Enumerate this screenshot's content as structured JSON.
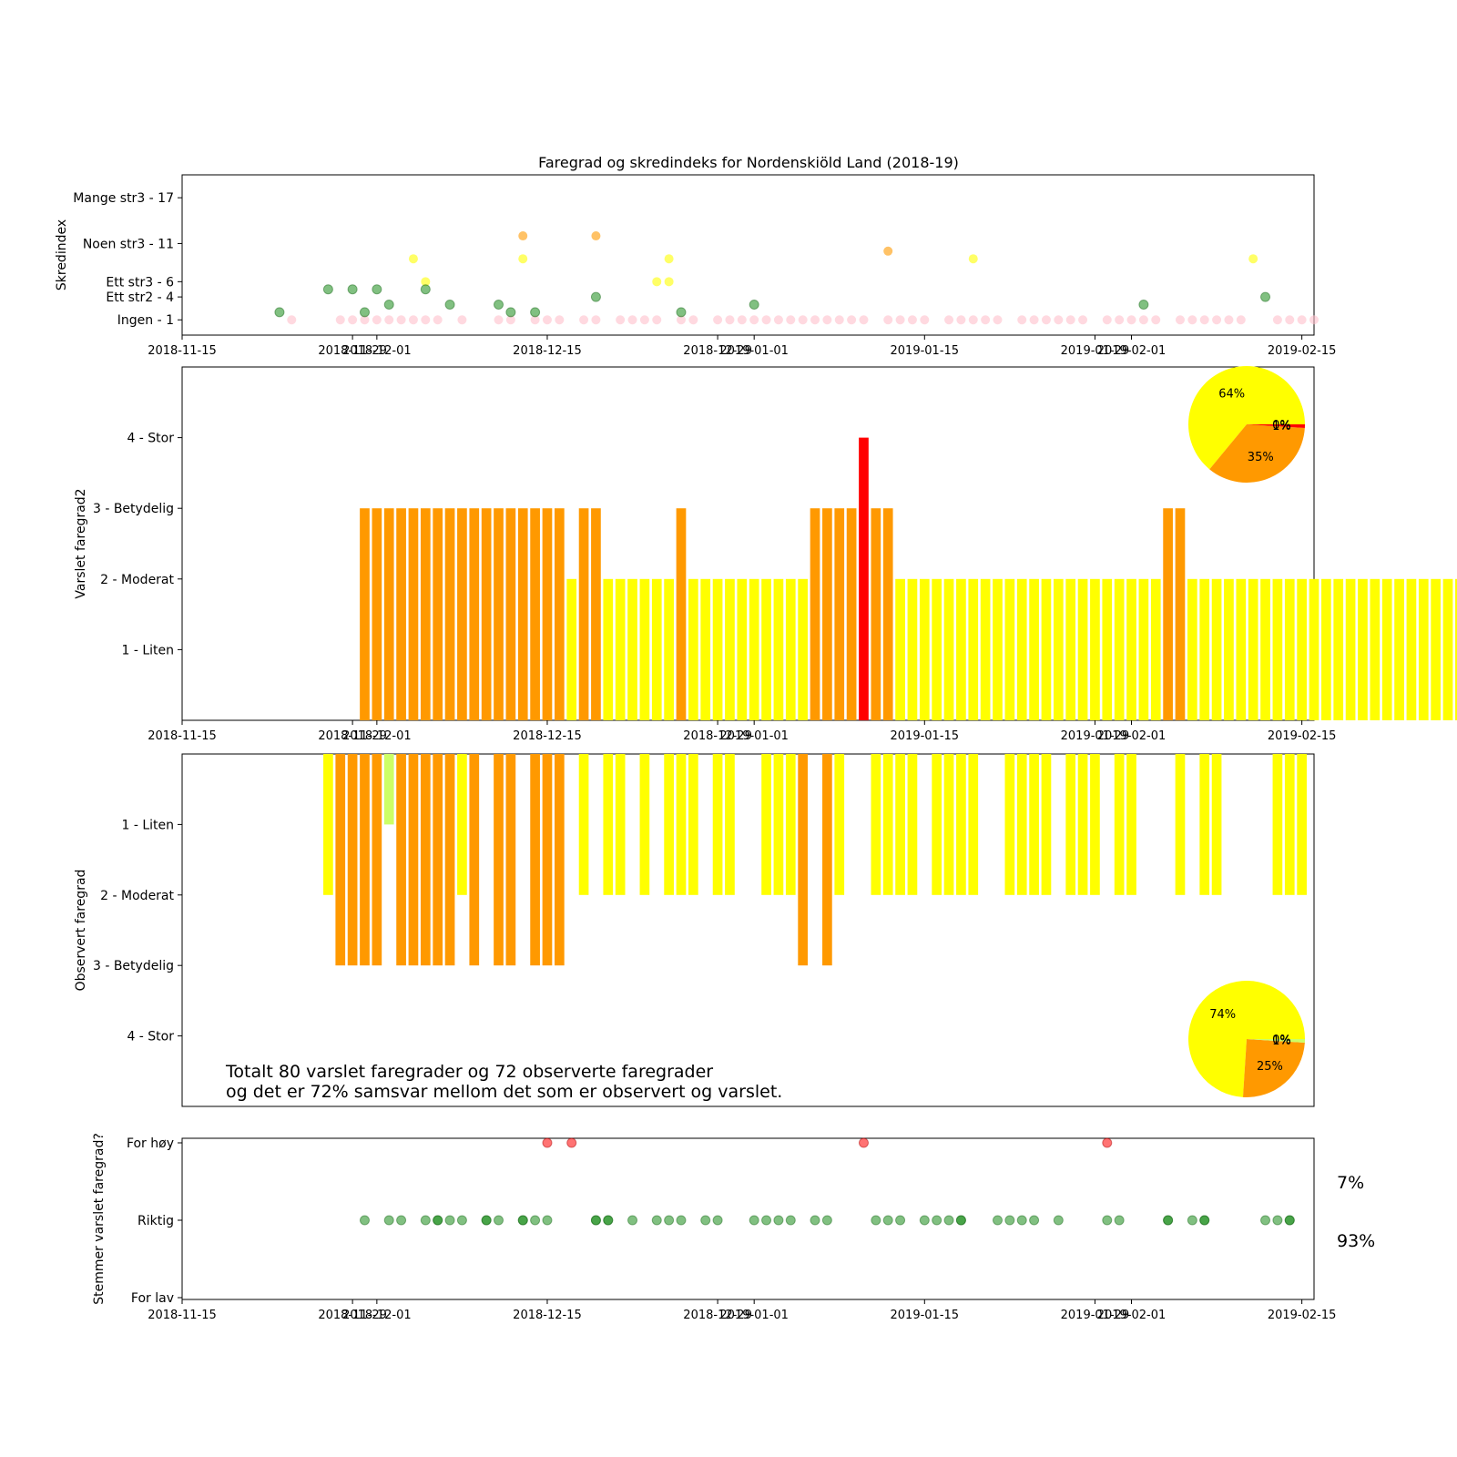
{
  "figure": {
    "title": "Faregrad og skredindeks for Nordenskiöld Land (2018-19)"
  },
  "colors": {
    "liten": "#ccff66",
    "moderat": "#ffff00",
    "betydelig": "#ff9900",
    "stor": "#ff0000",
    "green_point": "#1a8c1a",
    "ingen_point": "#ffc0cb",
    "for_hoy_point": "#ff0000"
  },
  "chart_data": [
    {
      "id": "skredindex",
      "type": "scatter",
      "ylabel": "Skredindex",
      "xlim": [
        "2018-11-15",
        "2019-02-16"
      ],
      "x_ticks": [
        "2018-11-15",
        "2018-11-29",
        "2018-12-01",
        "2018-12-15",
        "2018-12-29",
        "2019-01-01",
        "2019-01-15",
        "2019-01-29",
        "2019-02-01",
        "2019-02-15"
      ],
      "ylim": [
        -1,
        20
      ],
      "y_ticks": [
        {
          "value": 1,
          "label": "Ingen - 1"
        },
        {
          "value": 4,
          "label": "Ett str2 - 4"
        },
        {
          "value": 6,
          "label": "Ett str3 - 6"
        },
        {
          "value": 11,
          "label": "Noen str3 - 11"
        },
        {
          "value": 17,
          "label": "Mange str3 - 17"
        }
      ],
      "series": [
        {
          "color": "green",
          "points": [
            [
              "2018-11-23",
              2
            ],
            [
              "2018-11-27",
              5
            ],
            [
              "2018-11-29",
              5
            ],
            [
              "2018-11-30",
              2
            ],
            [
              "2018-12-01",
              5
            ],
            [
              "2018-12-02",
              3
            ],
            [
              "2018-12-05",
              5
            ],
            [
              "2018-12-07",
              3
            ],
            [
              "2018-12-11",
              3
            ],
            [
              "2018-12-12",
              2
            ],
            [
              "2018-12-14",
              2
            ],
            [
              "2018-12-19",
              4
            ],
            [
              "2018-12-26",
              2
            ],
            [
              "2019-01-01",
              3
            ],
            [
              "2019-02-02",
              3
            ],
            [
              "2019-02-12",
              4
            ]
          ]
        },
        {
          "color": "yellow",
          "points": [
            [
              "2018-12-04",
              9
            ],
            [
              "2018-12-05",
              6
            ],
            [
              "2018-12-13",
              9
            ],
            [
              "2018-12-24",
              6
            ],
            [
              "2018-12-25",
              6
            ],
            [
              "2018-12-25",
              9
            ],
            [
              "2019-01-19",
              9
            ],
            [
              "2019-02-11",
              9
            ]
          ]
        },
        {
          "color": "orange",
          "points": [
            [
              "2018-12-13",
              12
            ],
            [
              "2018-12-19",
              12
            ],
            [
              "2019-01-12",
              10
            ]
          ]
        },
        {
          "color": "pink",
          "points": [
            [
              "2018-11-24",
              1
            ],
            [
              "2018-11-28",
              1
            ],
            [
              "2018-11-29",
              1
            ],
            [
              "2018-11-30",
              1
            ],
            [
              "2018-12-01",
              1
            ],
            [
              "2018-12-02",
              1
            ],
            [
              "2018-12-03",
              1
            ],
            [
              "2018-12-04",
              1
            ],
            [
              "2018-12-05",
              1
            ],
            [
              "2018-12-06",
              1
            ],
            [
              "2018-12-08",
              1
            ],
            [
              "2018-12-11",
              1
            ],
            [
              "2018-12-12",
              1
            ],
            [
              "2018-12-14",
              1
            ],
            [
              "2018-12-15",
              1
            ],
            [
              "2018-12-16",
              1
            ],
            [
              "2018-12-18",
              1
            ],
            [
              "2018-12-19",
              1
            ],
            [
              "2018-12-21",
              1
            ],
            [
              "2018-12-22",
              1
            ],
            [
              "2018-12-23",
              1
            ],
            [
              "2018-12-24",
              1
            ],
            [
              "2018-12-26",
              1
            ],
            [
              "2018-12-27",
              1
            ],
            [
              "2018-12-29",
              1
            ],
            [
              "2018-12-30",
              1
            ],
            [
              "2018-12-31",
              1
            ],
            [
              "2019-01-01",
              1
            ],
            [
              "2019-01-02",
              1
            ],
            [
              "2019-01-03",
              1
            ],
            [
              "2019-01-04",
              1
            ],
            [
              "2019-01-05",
              1
            ],
            [
              "2019-01-06",
              1
            ],
            [
              "2019-01-07",
              1
            ],
            [
              "2019-01-08",
              1
            ],
            [
              "2019-01-09",
              1
            ],
            [
              "2019-01-10",
              1
            ],
            [
              "2019-01-12",
              1
            ],
            [
              "2019-01-13",
              1
            ],
            [
              "2019-01-14",
              1
            ],
            [
              "2019-01-15",
              1
            ],
            [
              "2019-01-17",
              1
            ],
            [
              "2019-01-18",
              1
            ],
            [
              "2019-01-19",
              1
            ],
            [
              "2019-01-20",
              1
            ],
            [
              "2019-01-21",
              1
            ],
            [
              "2019-01-23",
              1
            ],
            [
              "2019-01-24",
              1
            ],
            [
              "2019-01-25",
              1
            ],
            [
              "2019-01-26",
              1
            ],
            [
              "2019-01-27",
              1
            ],
            [
              "2019-01-28",
              1
            ],
            [
              "2019-01-30",
              1
            ],
            [
              "2019-01-31",
              1
            ],
            [
              "2019-02-01",
              1
            ],
            [
              "2019-02-02",
              1
            ],
            [
              "2019-02-03",
              1
            ],
            [
              "2019-02-05",
              1
            ],
            [
              "2019-02-06",
              1
            ],
            [
              "2019-02-07",
              1
            ],
            [
              "2019-02-08",
              1
            ],
            [
              "2019-02-09",
              1
            ],
            [
              "2019-02-10",
              1
            ],
            [
              "2019-02-13",
              1
            ],
            [
              "2019-02-14",
              1
            ],
            [
              "2019-02-15",
              1
            ],
            [
              "2019-02-16",
              1
            ]
          ]
        }
      ]
    },
    {
      "id": "varslet",
      "type": "bar",
      "ylabel": "Varslet faregrad2",
      "ylim": [
        0,
        5
      ],
      "y_ticks": [
        {
          "value": 1,
          "label": "1 - Liten"
        },
        {
          "value": 2,
          "label": "2 - Moderat"
        },
        {
          "value": 3,
          "label": "3 - Betydelig"
        },
        {
          "value": 4,
          "label": "4 - Stor"
        }
      ],
      "start_date": "2018-11-30",
      "values": [
        3,
        3,
        3,
        3,
        3,
        3,
        3,
        3,
        3,
        3,
        3,
        3,
        3,
        3,
        3,
        3,
        3,
        2,
        3,
        3,
        2,
        2,
        2,
        2,
        2,
        2,
        3,
        2,
        2,
        2,
        2,
        2,
        2,
        2,
        2,
        2,
        2,
        3,
        3,
        3,
        3,
        4,
        3,
        3,
        2,
        2,
        2,
        2,
        2,
        2,
        2,
        2,
        2,
        2,
        2,
        2,
        2,
        2,
        2,
        2,
        2,
        2,
        2,
        2,
        2,
        2,
        3,
        3,
        2,
        2,
        2,
        2,
        2,
        2,
        2,
        2,
        2,
        2,
        2,
        2,
        2,
        2,
        2,
        2,
        2,
        2,
        2,
        2,
        2,
        2,
        2,
        2
      ],
      "pie": {
        "slices": [
          {
            "level": "moderat",
            "value": 64,
            "label": "64%"
          },
          {
            "level": "betydelig",
            "value": 35,
            "label": "35%"
          },
          {
            "level": "stor",
            "value": 1,
            "label": "1%"
          },
          {
            "level": "liten",
            "value": 0,
            "label": "0%"
          }
        ]
      }
    },
    {
      "id": "observert",
      "type": "bar",
      "ylabel": "Observert faregrad",
      "ylim": [
        5,
        0
      ],
      "y_ticks": [
        {
          "value": 1,
          "label": "1 - Liten"
        },
        {
          "value": 2,
          "label": "2 - Moderat"
        },
        {
          "value": 3,
          "label": "3 - Betydelig"
        },
        {
          "value": 4,
          "label": "4 - Stor"
        }
      ],
      "values": [
        [
          "2018-11-27",
          2
        ],
        [
          "2018-11-28",
          3
        ],
        [
          "2018-11-29",
          3
        ],
        [
          "2018-11-30",
          3
        ],
        [
          "2018-12-01",
          3
        ],
        [
          "2018-12-02",
          1
        ],
        [
          "2018-12-03",
          3
        ],
        [
          "2018-12-04",
          3
        ],
        [
          "2018-12-05",
          3
        ],
        [
          "2018-12-06",
          3
        ],
        [
          "2018-12-07",
          3
        ],
        [
          "2018-12-08",
          2
        ],
        [
          "2018-12-09",
          3
        ],
        [
          "2018-12-11",
          3
        ],
        [
          "2018-12-12",
          3
        ],
        [
          "2018-12-14",
          3
        ],
        [
          "2018-12-15",
          3
        ],
        [
          "2018-12-16",
          3
        ],
        [
          "2018-12-18",
          2
        ],
        [
          "2018-12-20",
          2
        ],
        [
          "2018-12-21",
          2
        ],
        [
          "2018-12-23",
          2
        ],
        [
          "2018-12-25",
          2
        ],
        [
          "2018-12-26",
          2
        ],
        [
          "2018-12-27",
          2
        ],
        [
          "2018-12-29",
          2
        ],
        [
          "2018-12-30",
          2
        ],
        [
          "2019-01-02",
          2
        ],
        [
          "2019-01-03",
          2
        ],
        [
          "2019-01-04",
          2
        ],
        [
          "2019-01-05",
          3
        ],
        [
          "2019-01-07",
          3
        ],
        [
          "2019-01-08",
          2
        ],
        [
          "2019-01-11",
          2
        ],
        [
          "2019-01-12",
          2
        ],
        [
          "2019-01-13",
          2
        ],
        [
          "2019-01-14",
          2
        ],
        [
          "2019-01-16",
          2
        ],
        [
          "2019-01-17",
          2
        ],
        [
          "2019-01-18",
          2
        ],
        [
          "2019-01-19",
          2
        ],
        [
          "2019-01-22",
          2
        ],
        [
          "2019-01-23",
          2
        ],
        [
          "2019-01-24",
          2
        ],
        [
          "2019-01-25",
          2
        ],
        [
          "2019-01-27",
          2
        ],
        [
          "2019-01-28",
          2
        ],
        [
          "2019-01-29",
          2
        ],
        [
          "2019-01-31",
          2
        ],
        [
          "2019-02-01",
          2
        ],
        [
          "2019-02-05",
          2
        ],
        [
          "2019-02-07",
          2
        ],
        [
          "2019-02-08",
          2
        ],
        [
          "2019-02-13",
          2
        ],
        [
          "2019-02-14",
          2
        ],
        [
          "2019-02-15",
          2
        ]
      ],
      "pie": {
        "slices": [
          {
            "level": "moderat",
            "value": 74,
            "label": "74%"
          },
          {
            "level": "betydelig",
            "value": 25,
            "label": "25%"
          },
          {
            "level": "liten",
            "value": 1,
            "label": "1%"
          },
          {
            "level": "stor",
            "value": 0,
            "label": "0%"
          }
        ]
      },
      "annotation": [
        "Totalt 80 varslet faregrader og 72 observerte faregrader",
        "og det er 72% samsvar mellom det som er observert og varslet."
      ]
    },
    {
      "id": "stemmer",
      "type": "scatter",
      "ylabel": "Stemmer varslet faregrad?",
      "ylim": [
        -1,
        1
      ],
      "y_ticks": [
        {
          "value": -1,
          "label": "For lav"
        },
        {
          "value": 0,
          "label": "Riktig"
        },
        {
          "value": 1,
          "label": "For høy"
        }
      ],
      "for_hoy": [
        "2018-12-15",
        "2018-12-17",
        "2019-01-10",
        "2019-01-30"
      ],
      "riktig": [
        "2018-11-30",
        "2018-12-02",
        "2018-12-03",
        "2018-12-05",
        "2018-12-06",
        "2018-12-06",
        "2018-12-07",
        "2018-12-08",
        "2018-12-10",
        "2018-12-10",
        "2018-12-11",
        "2018-12-13",
        "2018-12-13",
        "2018-12-14",
        "2018-12-15",
        "2018-12-19",
        "2018-12-19",
        "2018-12-20",
        "2018-12-20",
        "2018-12-22",
        "2018-12-24",
        "2018-12-25",
        "2018-12-26",
        "2018-12-28",
        "2018-12-29",
        "2019-01-01",
        "2019-01-02",
        "2019-01-03",
        "2019-01-04",
        "2019-01-06",
        "2019-01-07",
        "2019-01-11",
        "2019-01-12",
        "2019-01-13",
        "2019-01-15",
        "2019-01-16",
        "2019-01-17",
        "2019-01-18",
        "2019-01-18",
        "2019-01-21",
        "2019-01-22",
        "2019-01-23",
        "2019-01-24",
        "2019-01-26",
        "2019-01-30",
        "2019-01-31",
        "2019-02-04",
        "2019-02-04",
        "2019-02-06",
        "2019-02-07",
        "2019-02-07",
        "2019-02-12",
        "2019-02-13",
        "2019-02-14",
        "2019-02-14"
      ],
      "pct_for_hoy": "7%",
      "pct_riktig": "93%"
    }
  ]
}
